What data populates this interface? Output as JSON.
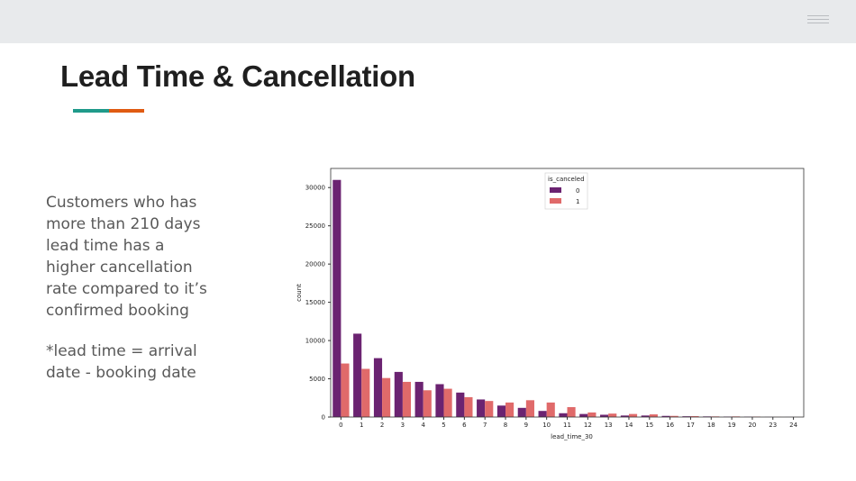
{
  "slide": {
    "title": "Lead Time & Cancellation",
    "accent_colors": [
      "#1f9a8a",
      "#e05b12"
    ],
    "body_lines": [
      "Customers who has",
      "more  than 210 days",
      "lead time has a",
      "higher cancellation",
      "rate compared to it’s",
      "confirmed booking"
    ],
    "note_lines": [
      "*lead time = arrival",
      "date - booking date"
    ],
    "menu_icon": "hamburger-menu-icon"
  },
  "chart_data": {
    "type": "bar",
    "xlabel": "lead_time_30",
    "ylabel": "count",
    "ylim": [
      0,
      32500
    ],
    "yticks": [
      0,
      5000,
      10000,
      15000,
      20000,
      25000,
      30000
    ],
    "categories": [
      "0",
      "1",
      "2",
      "3",
      "4",
      "5",
      "6",
      "7",
      "8",
      "9",
      "10",
      "11",
      "12",
      "13",
      "14",
      "15",
      "16",
      "17",
      "18",
      "19",
      "20",
      "23",
      "24"
    ],
    "legend": {
      "title": "is_canceled",
      "placement": "upper center"
    },
    "series": [
      {
        "name": "0",
        "color": "#6b2371",
        "values": [
          31000,
          10900,
          7700,
          5900,
          4600,
          4300,
          3200,
          2300,
          1500,
          1200,
          800,
          500,
          400,
          300,
          200,
          200,
          150,
          100,
          80,
          60,
          50,
          20,
          15
        ]
      },
      {
        "name": "1",
        "color": "#e06a6a",
        "values": [
          7000,
          6300,
          5100,
          4600,
          3500,
          3700,
          2600,
          2100,
          1900,
          2200,
          1900,
          1300,
          600,
          450,
          400,
          350,
          150,
          120,
          80,
          80,
          60,
          20,
          15
        ]
      }
    ]
  }
}
